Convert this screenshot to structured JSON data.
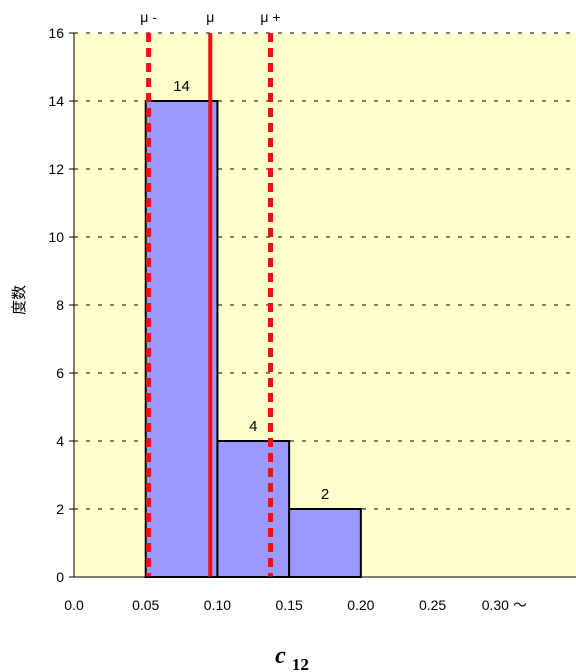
{
  "chart_data": {
    "type": "bar",
    "bins": [
      {
        "from": 0.05,
        "to": 0.1,
        "value": 14
      },
      {
        "from": 0.1,
        "to": 0.15,
        "value": 4
      },
      {
        "from": 0.15,
        "to": 0.2,
        "value": 2
      }
    ],
    "data_labels": [
      "14",
      "4",
      "2"
    ],
    "x_tick_labels": [
      "0.0",
      "0.05",
      "0.10",
      "0.15",
      "0.20",
      "0.25",
      "0.30 ～"
    ],
    "x_ticks": [
      0.0,
      0.05,
      0.1,
      0.15,
      0.2,
      0.25,
      0.3
    ],
    "y_tick_labels": [
      "0",
      "2",
      "4",
      "6",
      "8",
      "10",
      "12",
      "14",
      "16"
    ],
    "xlabel": "c",
    "xlabel_subscript": "12",
    "ylabel": "度数",
    "xlim": [
      0.0,
      0.35
    ],
    "ylim": [
      0,
      16
    ],
    "grid": "horizontal dashed",
    "reference_lines": [
      {
        "label": "μ -",
        "x": 0.052,
        "style": "dashed",
        "color": "#ee1111"
      },
      {
        "label": "μ",
        "x": 0.095,
        "style": "solid",
        "color": "#ee1111"
      },
      {
        "label": "μ +",
        "x": 0.137,
        "style": "dashed",
        "color": "#ee1111"
      }
    ],
    "colors": {
      "plot_background": "#ffffcc",
      "bar_fill": "#9999ff",
      "bar_edge": "#000000",
      "gridline": "#000000"
    }
  }
}
